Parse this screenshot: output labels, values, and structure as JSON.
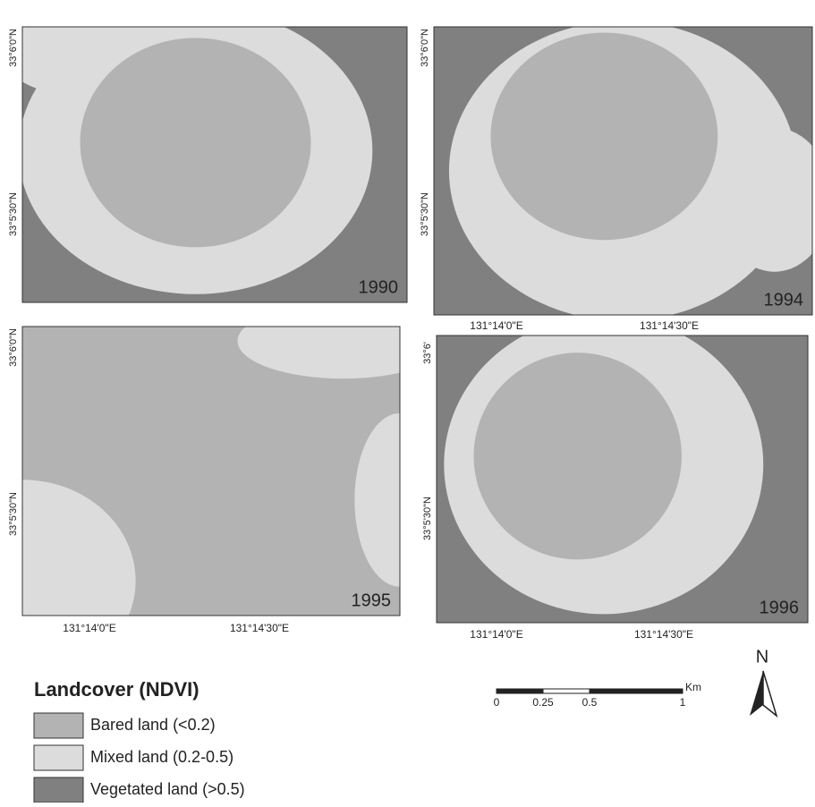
{
  "panels": [
    {
      "year": "1990",
      "lat_labels": [
        "33°6'0\"N",
        "33°5'30\"N"
      ],
      "lon_labels": []
    },
    {
      "year": "1994",
      "lat_labels": [
        "33°6'0\"N",
        "33°5'30\"N"
      ],
      "lon_labels": [
        "131°14'0\"E",
        "131°14'30\"E"
      ]
    },
    {
      "year": "1995",
      "lat_labels": [
        "33°6'0\"N",
        "33°5'30\"N"
      ],
      "lon_labels": [
        "131°14'0\"E",
        "131°14'30\"E"
      ]
    },
    {
      "year": "1996",
      "lat_labels": [
        "33°6'",
        "33°5'30\"N"
      ],
      "lon_labels": [
        "131°14'0\"E",
        "131°14'30\"E"
      ]
    }
  ],
  "legend": {
    "title": "Landcover (NDVI)",
    "items": [
      {
        "label": "Bared land (<0.2)",
        "color": "#b3b3b3"
      },
      {
        "label": "Mixed land (0.2-0.5)",
        "color": "#dcdcdc"
      },
      {
        "label": "Vegetated land (>0.5)",
        "color": "#808080"
      }
    ]
  },
  "scale_bar": {
    "unit": "Km",
    "labels": [
      "0",
      "0.25",
      "0.5",
      "1"
    ]
  },
  "north": "N"
}
